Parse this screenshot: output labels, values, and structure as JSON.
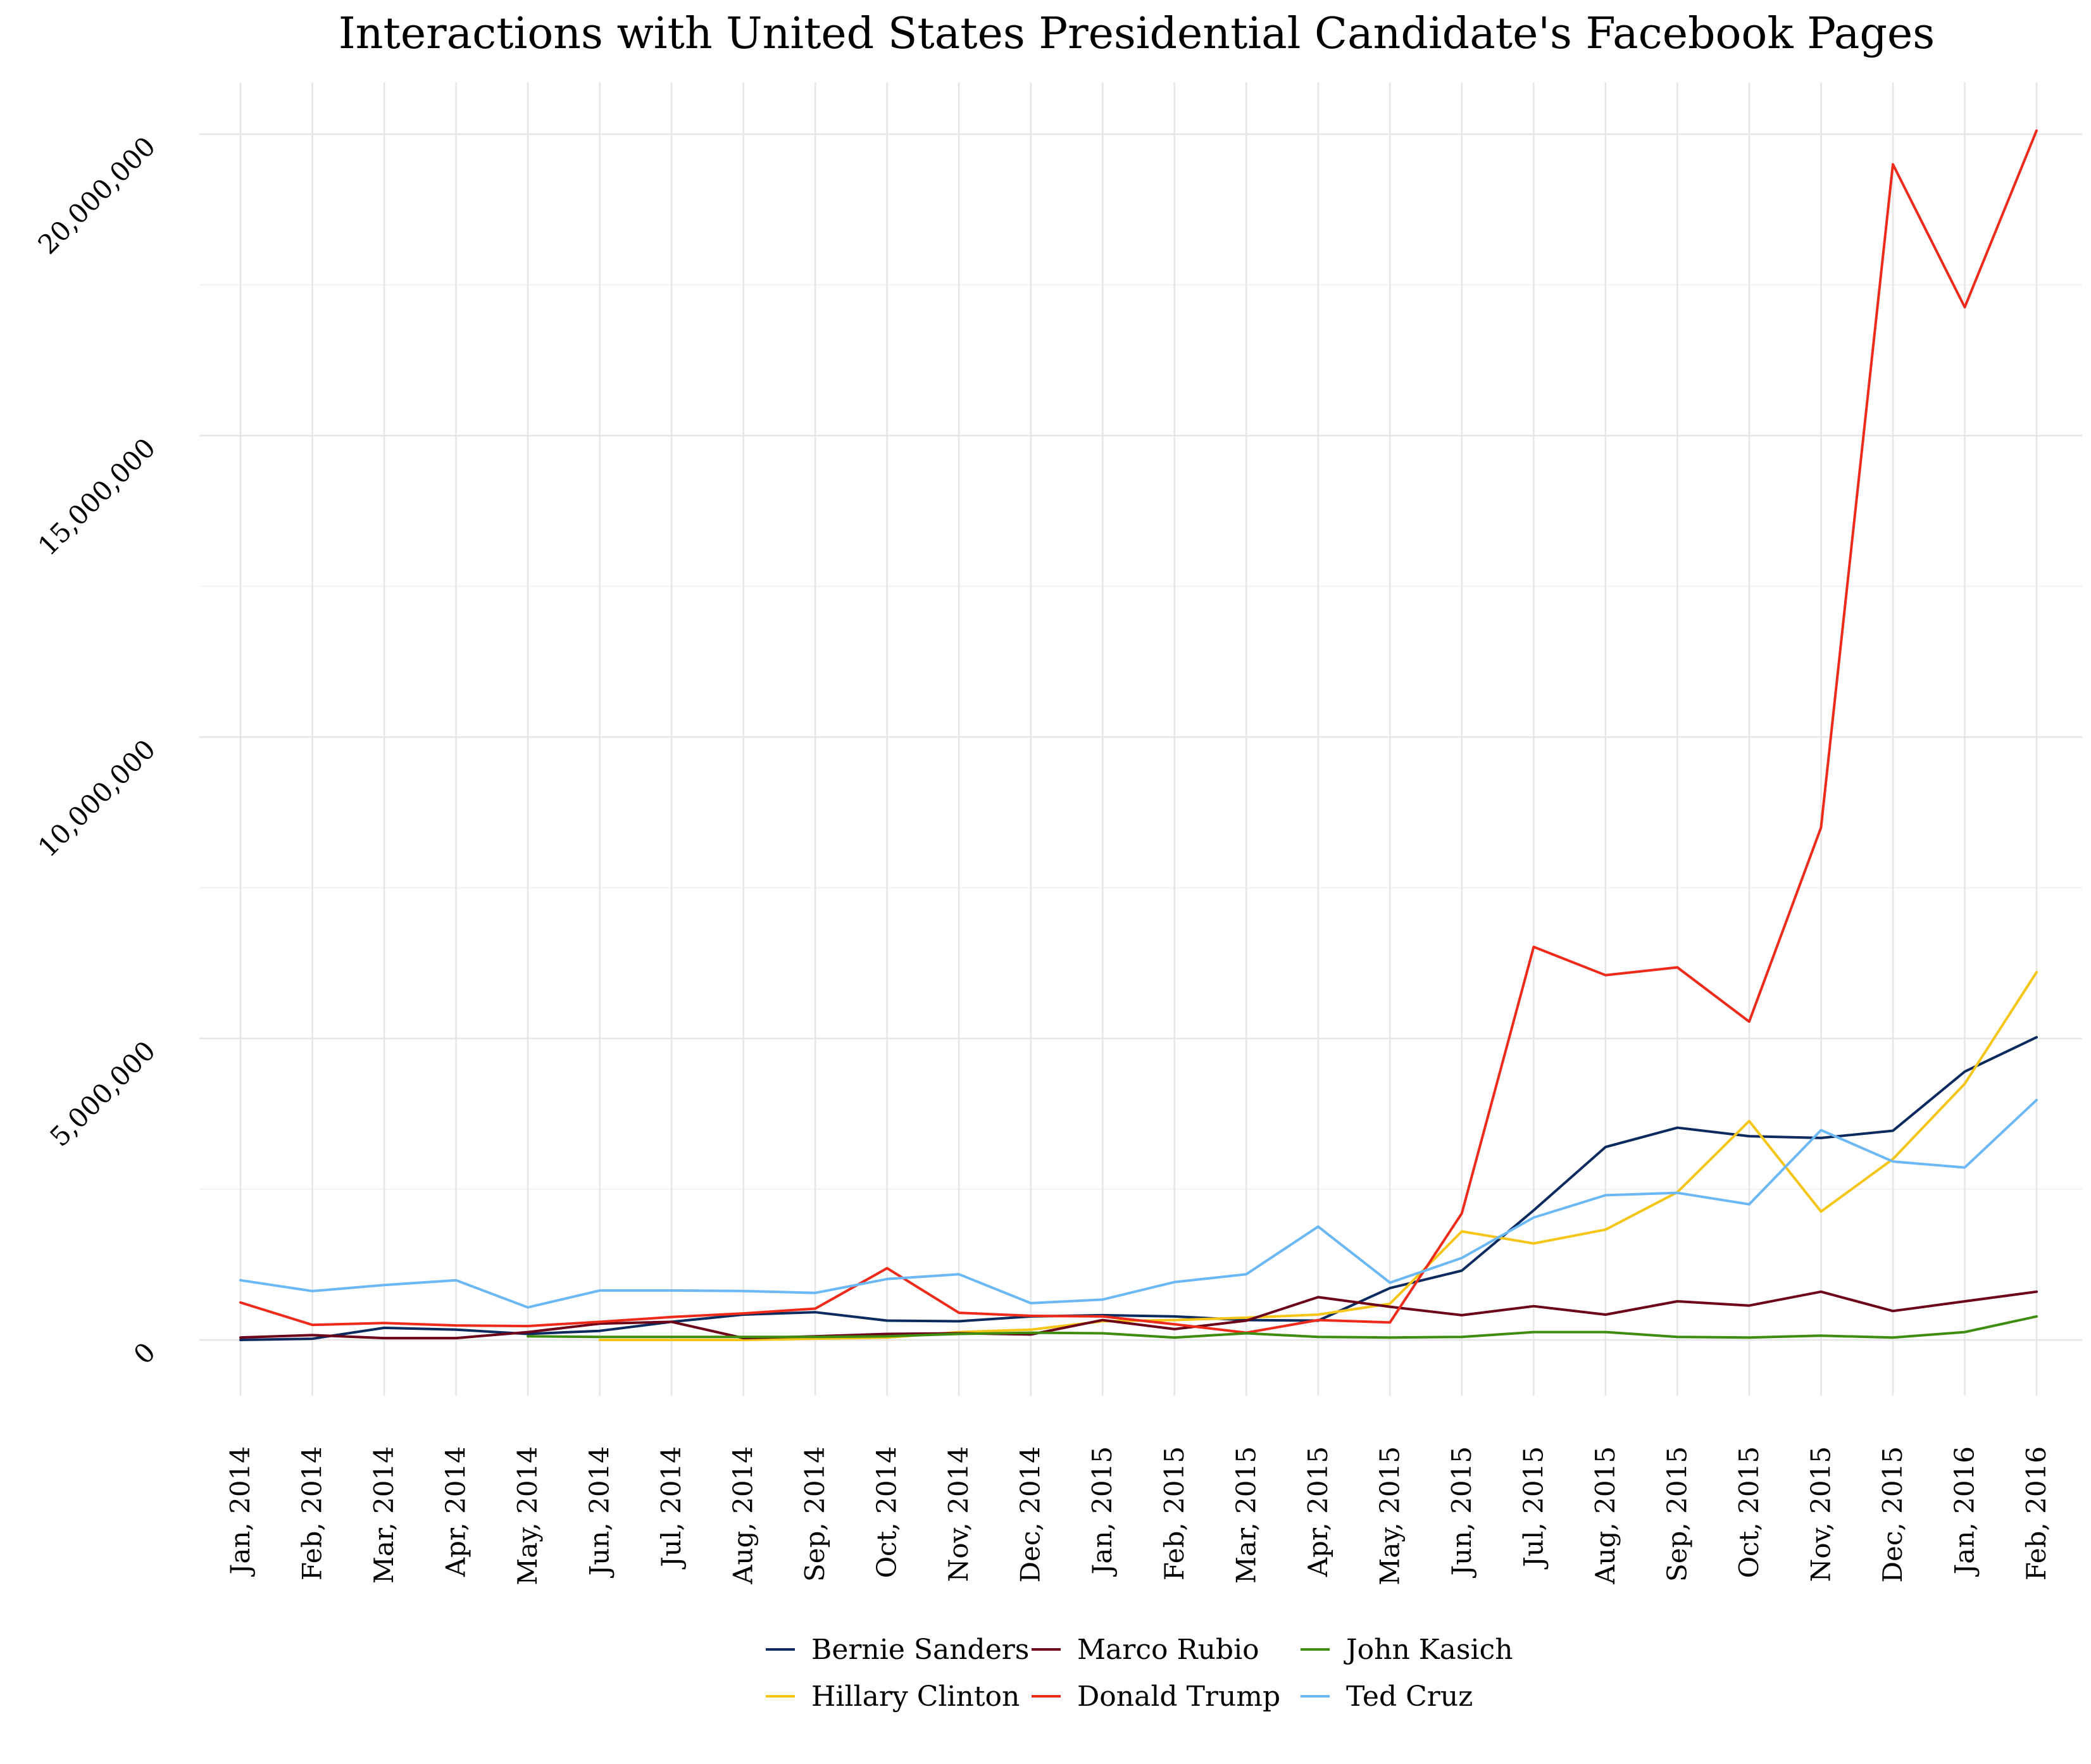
{
  "chart_data": {
    "type": "line",
    "title": "Interactions with United States Presidential Candidate's Facebook Pages",
    "xlabel": "",
    "ylabel": "",
    "ylim": [
      -800000,
      21000000
    ],
    "yticks": [
      0,
      5000000,
      10000000,
      15000000,
      20000000
    ],
    "ytick_labels": [
      "0",
      "5,000,000",
      "10,000,000",
      "15,000,000",
      "20,000,000"
    ],
    "grid": true,
    "legend_position": "bottom",
    "categories": [
      "Jan, 2014",
      "Feb, 2014",
      "Mar, 2014",
      "Apr, 2014",
      "May, 2014",
      "Jun, 2014",
      "Jul, 2014",
      "Aug, 2014",
      "Sep, 2014",
      "Oct, 2014",
      "Nov, 2014",
      "Dec, 2014",
      "Jan, 2015",
      "Feb, 2015",
      "Mar, 2015",
      "Apr, 2015",
      "May, 2015",
      "Jun, 2015",
      "Jul, 2015",
      "Aug, 2015",
      "Sep, 2015",
      "Oct, 2015",
      "Nov, 2015",
      "Dec, 2015",
      "Jan, 2016",
      "Feb, 2016"
    ],
    "series": [
      {
        "name": "Bernie Sanders",
        "color": "#0b2a5e",
        "values": [
          0,
          20000,
          200000,
          170000,
          100000,
          150000,
          300000,
          420000,
          460000,
          320000,
          310000,
          390000,
          410000,
          390000,
          330000,
          320000,
          860000,
          1150000,
          2150000,
          3200000,
          3520000,
          3380000,
          3350000,
          3470000,
          4450000,
          5020000
        ]
      },
      {
        "name": "Hillary Clinton",
        "color": "#f5c518",
        "values": [
          null,
          null,
          null,
          null,
          null,
          0,
          0,
          0,
          20000,
          40000,
          130000,
          170000,
          310000,
          330000,
          370000,
          420000,
          600000,
          1800000,
          1600000,
          1830000,
          2450000,
          3630000,
          2130000,
          3000000,
          4250000,
          6100000
        ]
      },
      {
        "name": "Marco Rubio",
        "color": "#6b0018",
        "values": [
          40000,
          80000,
          30000,
          30000,
          130000,
          270000,
          300000,
          30000,
          60000,
          100000,
          110000,
          90000,
          330000,
          180000,
          320000,
          710000,
          550000,
          410000,
          560000,
          420000,
          640000,
          570000,
          800000,
          480000,
          640000,
          800000
        ]
      },
      {
        "name": "Donald Trump",
        "color": "#ee2a1b",
        "values": [
          620000,
          250000,
          280000,
          240000,
          230000,
          300000,
          380000,
          440000,
          520000,
          1190000,
          450000,
          400000,
          390000,
          260000,
          120000,
          330000,
          290000,
          2100000,
          6520000,
          6050000,
          6180000,
          5280000,
          8500000,
          19500000,
          17130000,
          20060000
        ]
      },
      {
        "name": "John Kasich",
        "color": "#3e8c10",
        "values": [
          null,
          null,
          null,
          null,
          60000,
          50000,
          50000,
          50000,
          50000,
          60000,
          100000,
          120000,
          110000,
          40000,
          110000,
          50000,
          40000,
          50000,
          130000,
          130000,
          50000,
          40000,
          70000,
          40000,
          130000,
          390000
        ]
      },
      {
        "name": "Ted Cruz",
        "color": "#6cb8f5",
        "values": [
          990000,
          810000,
          910000,
          990000,
          540000,
          820000,
          820000,
          810000,
          780000,
          1010000,
          1090000,
          610000,
          670000,
          960000,
          1090000,
          1880000,
          950000,
          1360000,
          2030000,
          2400000,
          2440000,
          2250000,
          3480000,
          2960000,
          2860000,
          3980000
        ]
      }
    ]
  }
}
